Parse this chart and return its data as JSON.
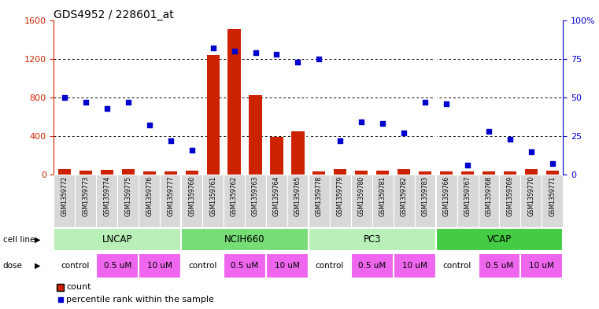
{
  "title": "GDS4952 / 228601_at",
  "samples": [
    "GSM1359772",
    "GSM1359773",
    "GSM1359774",
    "GSM1359775",
    "GSM1359776",
    "GSM1359777",
    "GSM1359760",
    "GSM1359761",
    "GSM1359762",
    "GSM1359763",
    "GSM1359764",
    "GSM1359765",
    "GSM1359778",
    "GSM1359779",
    "GSM1359780",
    "GSM1359781",
    "GSM1359782",
    "GSM1359783",
    "GSM1359766",
    "GSM1359767",
    "GSM1359768",
    "GSM1359769",
    "GSM1359770",
    "GSM1359771"
  ],
  "counts": [
    55,
    40,
    50,
    55,
    30,
    35,
    40,
    1240,
    1510,
    820,
    390,
    450,
    30,
    55,
    40,
    45,
    55,
    35,
    30,
    35,
    30,
    35,
    60,
    45
  ],
  "percentiles": [
    50,
    47,
    43,
    47,
    32,
    22,
    16,
    82,
    80,
    79,
    78,
    73,
    75,
    22,
    34,
    33,
    27,
    47,
    46,
    6,
    28,
    23,
    15,
    7
  ],
  "cell_line_names": [
    "LNCAP",
    "NCIH660",
    "PC3",
    "VCAP"
  ],
  "cell_line_ranges": [
    [
      0,
      6
    ],
    [
      6,
      12
    ],
    [
      12,
      18
    ],
    [
      18,
      24
    ]
  ],
  "cell_line_colors": [
    "#b8f0b8",
    "#77dd77",
    "#b8f0b8",
    "#44cc44"
  ],
  "dose_blocks": [
    {
      "name": "control",
      "start": 0,
      "end": 2
    },
    {
      "name": "0.5 uM",
      "start": 2,
      "end": 4
    },
    {
      "name": "10 uM",
      "start": 4,
      "end": 6
    },
    {
      "name": "control",
      "start": 6,
      "end": 8
    },
    {
      "name": "0.5 uM",
      "start": 8,
      "end": 10
    },
    {
      "name": "10 uM",
      "start": 10,
      "end": 12
    },
    {
      "name": "control",
      "start": 12,
      "end": 14
    },
    {
      "name": "0.5 uM",
      "start": 14,
      "end": 16
    },
    {
      "name": "10 uM",
      "start": 16,
      "end": 18
    },
    {
      "name": "control",
      "start": 18,
      "end": 20
    },
    {
      "name": "0.5 uM",
      "start": 20,
      "end": 22
    },
    {
      "name": "10 uM",
      "start": 22,
      "end": 24
    }
  ],
  "dose_color_control": "#ffffff",
  "dose_color_um": "#ee66ee",
  "bar_color": "#cc2200",
  "scatter_color": "#0000cc",
  "left_ylim": [
    0,
    1600
  ],
  "right_ylim": [
    0,
    100
  ],
  "left_yticks": [
    0,
    400,
    800,
    1200,
    1600
  ],
  "right_yticks": [
    0,
    25,
    50,
    75,
    100
  ],
  "right_yticklabels": [
    "0",
    "25",
    "50",
    "75",
    "100%"
  ],
  "bg_color": "#ffffff",
  "sample_bg": "#d8d8d8"
}
